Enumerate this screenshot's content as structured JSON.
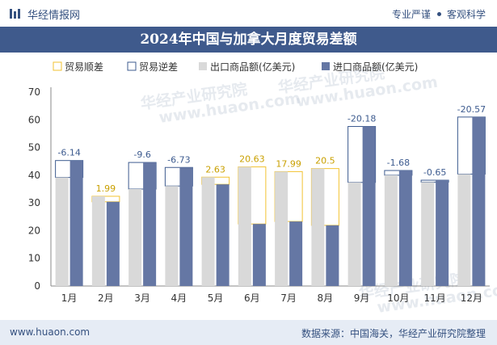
{
  "header": {
    "brand": "华经情报网",
    "right_a": "专业严谨",
    "right_b": "客观科学"
  },
  "title": "2024年中国与加拿大月度贸易差额",
  "footer": {
    "url": "www.huaon.com",
    "source": "数据来源：中国海关，华经产业研究院整理"
  },
  "watermark": [
    "华经产业研究院",
    "www.huaon.com"
  ],
  "colors": {
    "surplus": "#f2c230",
    "deficit": "#3d5b8f",
    "export": "#d9d9d9",
    "import": "#6577a4",
    "title_bg": "#3f5a8c"
  },
  "chart_data": {
    "type": "bar",
    "categories": [
      "1月",
      "2月",
      "3月",
      "4月",
      "5月",
      "6月",
      "7月",
      "8月",
      "9月",
      "10月",
      "11月",
      "12月"
    ],
    "series": [
      {
        "name": "出口商品额(亿美元)",
        "values": [
          39.2,
          32.4,
          35.0,
          36.1,
          39.3,
          43.0,
          41.3,
          42.4,
          37.4,
          40.0,
          37.5,
          40.4
        ]
      },
      {
        "name": "进口商品额(亿美元)",
        "values": [
          45.3,
          30.4,
          44.6,
          42.8,
          36.7,
          22.4,
          23.3,
          21.9,
          57.6,
          41.7,
          38.2,
          61.0
        ]
      }
    ],
    "balance": {
      "values": [
        -6.14,
        1.99,
        -9.6,
        -6.73,
        2.63,
        20.63,
        17.99,
        20.5,
        -20.18,
        -1.68,
        -0.65,
        -20.57
      ],
      "labels": [
        "-6.14",
        "1.99",
        "-9.6",
        "-6.73",
        "2.63",
        "20.63",
        "17.99",
        "20.5",
        "-20.18",
        "-1.68",
        "-0.65",
        "-20.57"
      ]
    },
    "legend": [
      "贸易顺差",
      "贸易逆差",
      "出口商品额(亿美元)",
      "进口商品额(亿美元)"
    ],
    "ylim": [
      0,
      70
    ],
    "yticks": [
      0,
      10,
      20,
      30,
      40,
      50,
      60,
      70
    ],
    "legend_position": "top"
  }
}
